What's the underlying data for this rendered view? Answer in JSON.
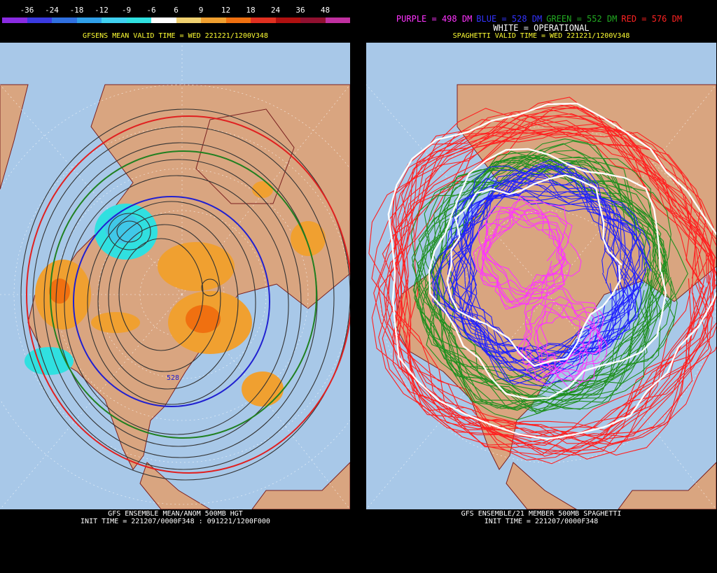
{
  "left": {
    "colorbar": {
      "ticks": [
        "-36",
        "-24",
        "-18",
        "-12",
        "-9",
        "-6",
        "6",
        "9",
        "12",
        "18",
        "24",
        "36",
        "48"
      ],
      "colors": [
        "#8a2be2",
        "#3a3ae0",
        "#3070e0",
        "#30a0e8",
        "#40d0f0",
        "#30e0e0",
        "#ffffff",
        "#f0d070",
        "#f0a030",
        "#f07010",
        "#e03020",
        "#b01010",
        "#901030",
        "#c030a0"
      ]
    },
    "title": "GFSENS MEAN VALID TIME = WED 221221/1200V348",
    "contour_label": "528",
    "footer_line1": "GFS ENSEMBLE MEAN/ANOM 500MB HGT",
    "footer_line2": "INIT TIME = 221207/0000F348 : 091221/1200F000"
  },
  "right": {
    "legend": [
      {
        "text": "PURPLE = 498 DM",
        "color": "#ff33ff"
      },
      {
        "text": "BLUE = 528 DM",
        "color": "#3333ff"
      },
      {
        "text": "GREEN = 552 DM",
        "color": "#22aa22"
      },
      {
        "text": "RED = 576 DM",
        "color": "#ff2222"
      }
    ],
    "legend_white": "WHITE = OPERATIONAL",
    "title": "SPAGHETTI VALID TIME = WED 221221/1200V348",
    "footer_line1": "GFS ENSEMBLE/21 MEMBER 500MB SPAGHETTI",
    "footer_line2": "INIT TIME = 221207/0000F348"
  },
  "colors": {
    "land": "#d9a580",
    "ocean": "#a8c8e8",
    "coast": "#7a2020",
    "grid": "#ffffff"
  }
}
